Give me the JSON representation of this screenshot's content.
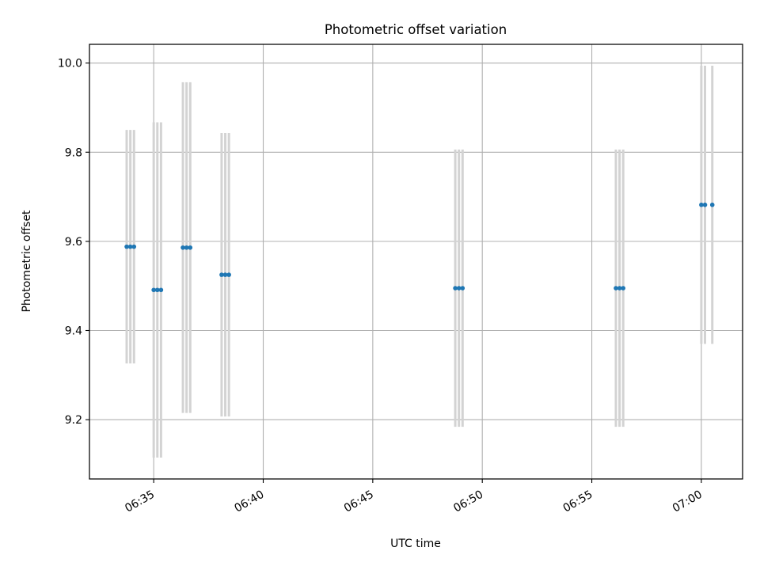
{
  "chart_data": {
    "type": "scatter",
    "title": "Photometric offset variation",
    "xlabel": "UTC time",
    "ylabel": "Photometric offset",
    "xlim": [
      "06:32:04",
      "07:01:53"
    ],
    "ylim": [
      9.067,
      10.042
    ],
    "grid": true,
    "x_ticks": [
      "06:35",
      "06:40",
      "06:45",
      "06:50",
      "06:55",
      "07:00"
    ],
    "y_ticks": [
      "9.2",
      "9.4",
      "9.6",
      "9.8",
      "10.0"
    ],
    "colors": {
      "points": "#1f77b4",
      "errorbars": "#d3d3d3",
      "grid": "#b0b0b0"
    },
    "series": [
      {
        "points": [
          {
            "x": "06:33:46",
            "y": 9.588,
            "yerr": 0.262
          },
          {
            "x": "06:33:56",
            "y": 9.588,
            "yerr": 0.262
          },
          {
            "x": "06:34:06",
            "y": 9.588,
            "yerr": 0.262
          },
          {
            "x": "06:35:00",
            "y": 9.491,
            "yerr": 0.376
          },
          {
            "x": "06:35:10",
            "y": 9.491,
            "yerr": 0.376
          },
          {
            "x": "06:35:20",
            "y": 9.491,
            "yerr": 0.376
          },
          {
            "x": "06:36:20",
            "y": 9.586,
            "yerr": 0.371
          },
          {
            "x": "06:36:30",
            "y": 9.586,
            "yerr": 0.371
          },
          {
            "x": "06:36:40",
            "y": 9.586,
            "yerr": 0.371
          },
          {
            "x": "06:38:06",
            "y": 9.525,
            "yerr": 0.318
          },
          {
            "x": "06:38:16",
            "y": 9.525,
            "yerr": 0.318
          },
          {
            "x": "06:38:26",
            "y": 9.525,
            "yerr": 0.318
          },
          {
            "x": "06:48:46",
            "y": 9.495,
            "yerr": 0.311
          },
          {
            "x": "06:48:56",
            "y": 9.495,
            "yerr": 0.311
          },
          {
            "x": "06:49:06",
            "y": 9.495,
            "yerr": 0.311
          },
          {
            "x": "06:56:06",
            "y": 9.495,
            "yerr": 0.311
          },
          {
            "x": "06:56:16",
            "y": 9.495,
            "yerr": 0.311
          },
          {
            "x": "06:56:26",
            "y": 9.495,
            "yerr": 0.311
          },
          {
            "x": "07:00:00",
            "y": 9.682,
            "yerr": 0.312
          },
          {
            "x": "07:00:10",
            "y": 9.682,
            "yerr": 0.312
          },
          {
            "x": "07:00:30",
            "y": 9.682,
            "yerr": 0.312
          }
        ]
      }
    ]
  }
}
